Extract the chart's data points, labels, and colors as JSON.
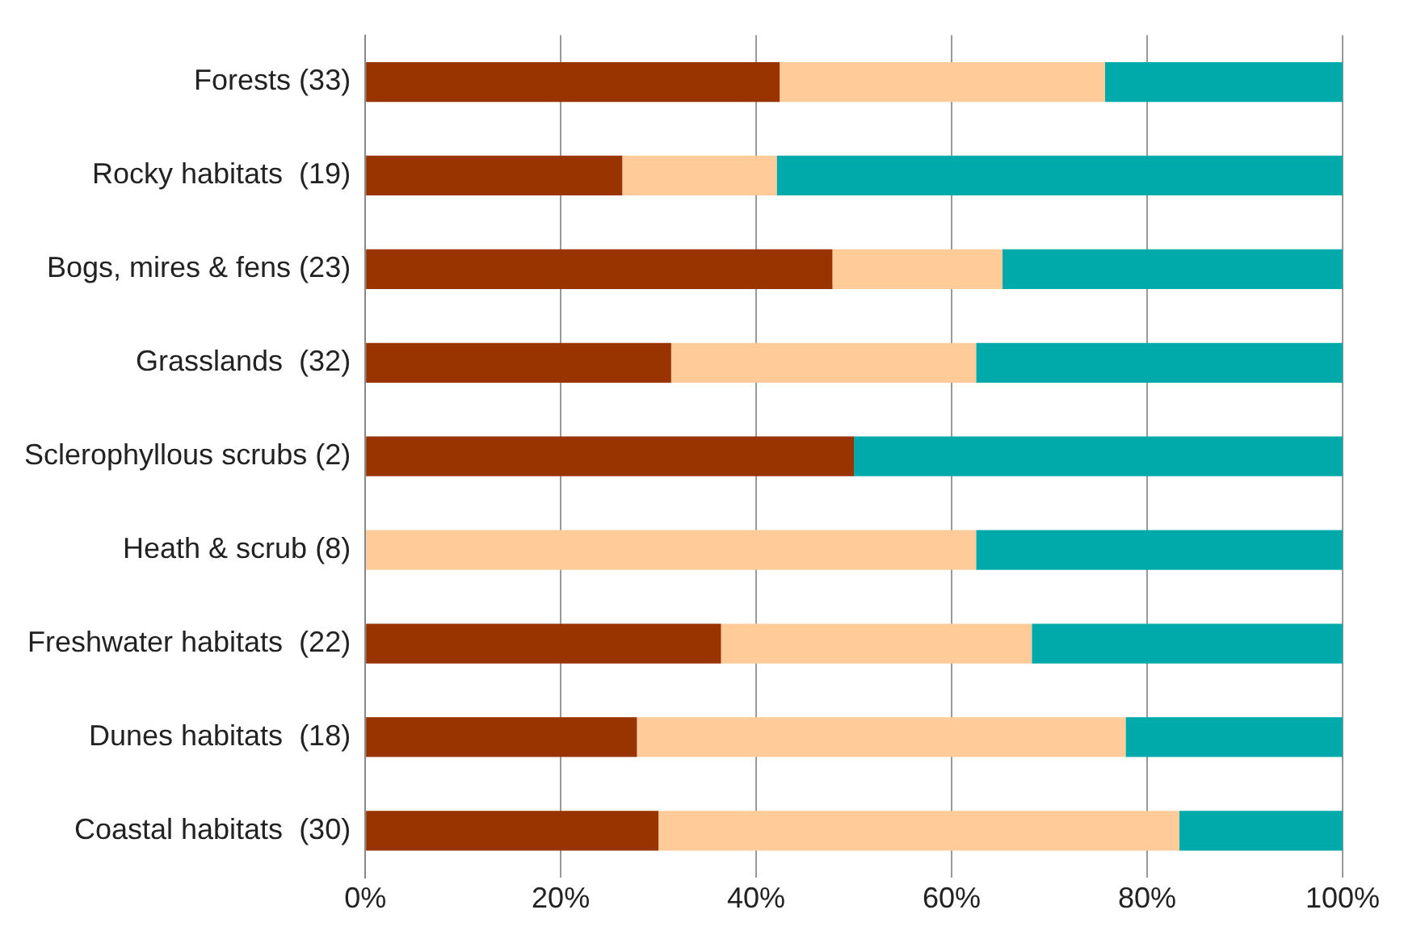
{
  "chart_data": {
    "type": "bar",
    "orientation": "horizontal",
    "stacked": true,
    "categories": [
      "Forests (33)",
      "Rocky habitats  (19)",
      "Bogs, mires & fens (23)",
      "Grasslands  (32)",
      "Sclerophyllous scrubs (2)",
      "Heath & scrub (8)",
      "Freshwater habitats  (22)",
      "Dunes habitats  (18)",
      "Coastal habitats  (30)"
    ],
    "series": [
      {
        "color": "#993300",
        "values": [
          42.4,
          26.3,
          47.8,
          31.3,
          50,
          0,
          36.4,
          27.8,
          30
        ]
      },
      {
        "color": "#ffcc99",
        "values": [
          33.3,
          15.8,
          17.4,
          31.2,
          0,
          62.5,
          31.8,
          50,
          53.3
        ]
      },
      {
        "color": "#00aaaa",
        "values": [
          24.3,
          57.9,
          34.8,
          37.5,
          50,
          37.5,
          31.8,
          22.2,
          16.7
        ]
      }
    ],
    "xlim": [
      0,
      100
    ],
    "xticks": [
      {
        "value": 0,
        "label": "0%"
      },
      {
        "value": 20,
        "label": "20%"
      },
      {
        "value": 40,
        "label": "40%"
      },
      {
        "value": 60,
        "label": "60%"
      },
      {
        "value": 80,
        "label": "80%"
      },
      {
        "value": 100,
        "label": "100%"
      }
    ],
    "grid": "x",
    "legend": false
  }
}
